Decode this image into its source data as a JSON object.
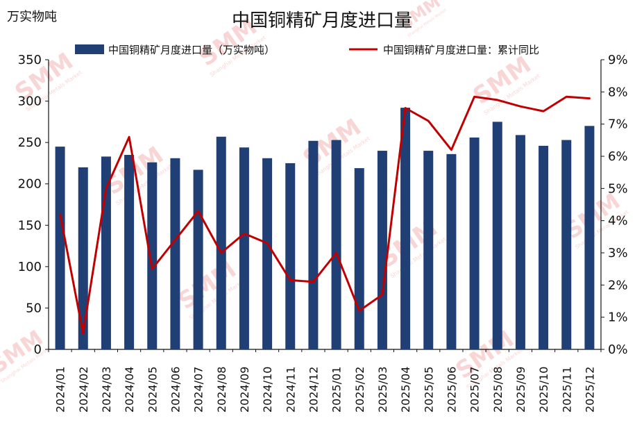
{
  "chart_data": {
    "type": "bar+line",
    "title": "中国铜精矿月度进口量",
    "y_left_unit_label": "万实物吨",
    "categories": [
      "2024/01",
      "2024/02",
      "2024/03",
      "2024/04",
      "2024/05",
      "2024/06",
      "2024/07",
      "2024/08",
      "2024/09",
      "2024/10",
      "2024/11",
      "2024/12",
      "2025/01",
      "2025/02",
      "2025/03",
      "2025/04",
      "2025/05",
      "2025/06",
      "2025/07",
      "2025/08",
      "2025/09",
      "2025/10",
      "2025/11",
      "2025/12"
    ],
    "bar_series": {
      "name": "中国铜精矿月度进口量（万实物吨）",
      "axis": "left",
      "color": "#1f3f75",
      "values": [
        245,
        220,
        233,
        235,
        226,
        231,
        217,
        257,
        244,
        231,
        225,
        252,
        253,
        219,
        240,
        292,
        240,
        236,
        256,
        275,
        259,
        246,
        253,
        270
      ]
    },
    "line_series": {
      "name": "中国铜精矿月度进口量：累计同比",
      "axis": "right",
      "color": "#c00000",
      "values": [
        4.2,
        0.5,
        5.0,
        6.6,
        2.5,
        3.4,
        4.3,
        3.0,
        3.6,
        3.3,
        2.15,
        2.1,
        3.0,
        1.2,
        1.7,
        7.5,
        7.1,
        6.2,
        7.85,
        7.75,
        7.55,
        7.4,
        7.85,
        7.8
      ]
    },
    "y_left": {
      "min": 0,
      "max": 350,
      "ticks": [
        0,
        50,
        100,
        150,
        200,
        250,
        300,
        350
      ]
    },
    "y_right": {
      "min": 0,
      "max": 9,
      "ticks": [
        "0%",
        "1%",
        "2%",
        "3%",
        "4%",
        "5%",
        "6%",
        "7%",
        "8%",
        "9%"
      ]
    },
    "legend_position": "top",
    "grid": false
  },
  "watermark": {
    "text": "SMM",
    "subtext": "Shanghai Metals Market",
    "color": "#f2a3a3"
  }
}
